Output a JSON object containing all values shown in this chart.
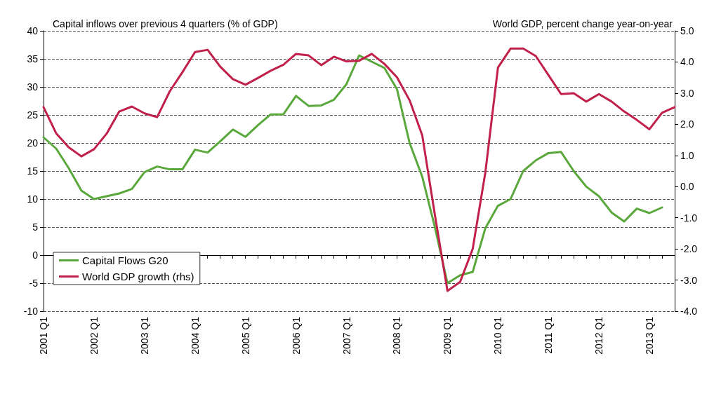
{
  "chart_data": {
    "type": "line",
    "ylabel": "Capital inflows over previous 4 quarters (% of GDP)",
    "y2label": "World GDP, percent change year-on-year",
    "categories": [
      "2001 Q1",
      null,
      null,
      null,
      "2002 Q1",
      null,
      null,
      null,
      "2003 Q1",
      null,
      null,
      null,
      "2004 Q1",
      null,
      null,
      null,
      "2005 Q1",
      null,
      null,
      null,
      "2006 Q1",
      null,
      null,
      null,
      "2007 Q1",
      null,
      null,
      null,
      "2008 Q1",
      null,
      null,
      null,
      "2009 Q1",
      null,
      null,
      null,
      "2010 Q1",
      null,
      null,
      null,
      "2011 Q1",
      null,
      null,
      null,
      "2012 Q1",
      null,
      null,
      null,
      "2013 Q1",
      null,
      null
    ],
    "series": [
      {
        "name": "Capital Flows G20",
        "color": "#5aa83c",
        "values": [
          21,
          19,
          15.5,
          11.5,
          10,
          10.5,
          11,
          11.8,
          14.8,
          15.8,
          15.3,
          15.3,
          18.8,
          18.3,
          20.3,
          22.4,
          21.1,
          23.2,
          25.1,
          25.1,
          28.4,
          26.6,
          26.7,
          27.7,
          30.5,
          35.6,
          34.5,
          33.4,
          29.6,
          20,
          14,
          5,
          -5,
          -3.6,
          -3,
          4.8,
          8.8,
          10,
          15,
          16.9,
          18.2,
          18.4,
          15,
          12.2,
          10.5,
          7.6,
          6,
          8.3,
          7.5,
          8.5,
          null
        ]
      },
      {
        "name": "World GDP growth (rhs)",
        "color": "#c0204a",
        "axis": "y2",
        "values": [
          2.55,
          1.71,
          1.26,
          0.97,
          1.2,
          1.7,
          2.41,
          2.57,
          2.35,
          2.23,
          3.06,
          3.67,
          4.32,
          4.39,
          3.85,
          3.45,
          3.27,
          3.49,
          3.72,
          3.91,
          4.26,
          4.21,
          3.9,
          4.17,
          4.02,
          4.04,
          4.26,
          3.94,
          3.51,
          2.77,
          1.65,
          -0.9,
          -3.35,
          -3.06,
          -2.0,
          0.45,
          3.82,
          4.43,
          4.43,
          4.19,
          3.58,
          2.97,
          3.0,
          2.73,
          2.97,
          2.73,
          2.41,
          2.14,
          1.84,
          2.37,
          2.55
        ]
      }
    ],
    "ylim": [
      -10,
      40
    ],
    "yticks": [
      -10,
      -5,
      0,
      5,
      10,
      15,
      20,
      25,
      30,
      35,
      40
    ],
    "y2lim": [
      -4,
      5
    ],
    "y2ticks": [
      {
        "value": -4,
        "label": "-4.0"
      },
      {
        "value": -3,
        "label": "-3.0"
      },
      {
        "value": -2,
        "label": "-2.0"
      },
      {
        "value": -1,
        "label": "-1.0"
      },
      {
        "value": 0,
        "label": "0.0"
      },
      {
        "value": 1,
        "label": "1.0"
      },
      {
        "value": 2,
        "label": "2.0"
      },
      {
        "value": 3,
        "label": "3.0"
      },
      {
        "value": 4,
        "label": "4.0"
      },
      {
        "value": 5,
        "label": "5.0"
      }
    ],
    "grid": "y",
    "legend": "bottom left",
    "marker": "none",
    "line_style": "solid"
  }
}
